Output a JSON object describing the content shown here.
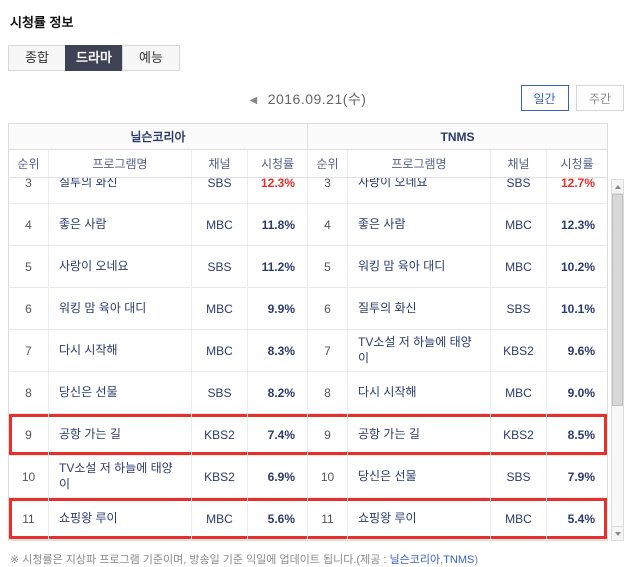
{
  "page": {
    "title": "시청률 정보"
  },
  "tabs": [
    {
      "key": "overall",
      "label": "종합"
    },
    {
      "key": "drama",
      "label": "드라마"
    },
    {
      "key": "variety",
      "label": "예능"
    }
  ],
  "active_tab": "드라마",
  "date_nav": {
    "prev_icon": "◀",
    "date": "2016.09.21(수)"
  },
  "period_toggle": {
    "daily": "일간",
    "weekly": "주간",
    "active": "일간"
  },
  "table": {
    "column_headers": {
      "rank": "순위",
      "program": "프로그램명",
      "channel": "채널",
      "rating": "시청률"
    },
    "sources": [
      {
        "name": "닐슨코리아",
        "rows": [
          {
            "rank": "3",
            "program": "질투의 화신",
            "channel": "SBS",
            "rating": "12.3%",
            "red": true
          },
          {
            "rank": "4",
            "program": "좋은 사람",
            "channel": "MBC",
            "rating": "11.8%"
          },
          {
            "rank": "5",
            "program": "사랑이 오네요",
            "channel": "SBS",
            "rating": "11.2%"
          },
          {
            "rank": "6",
            "program": "워킹 맘 육아 대디",
            "channel": "MBC",
            "rating": "9.9%"
          },
          {
            "rank": "7",
            "program": "다시 시작해",
            "channel": "MBC",
            "rating": "8.3%"
          },
          {
            "rank": "8",
            "program": "당신은 선물",
            "channel": "SBS",
            "rating": "8.2%"
          },
          {
            "rank": "9",
            "program": "공항 가는 길",
            "channel": "KBS2",
            "rating": "7.4%",
            "highlight": true
          },
          {
            "rank": "10",
            "program": "TV소설 저 하늘에 태양이",
            "channel": "KBS2",
            "rating": "6.9%"
          },
          {
            "rank": "11",
            "program": "쇼핑왕 루이",
            "channel": "MBC",
            "rating": "5.6%",
            "highlight": true
          }
        ]
      },
      {
        "name": "TNMS",
        "rows": [
          {
            "rank": "3",
            "program": "사랑이 오네요",
            "channel": "SBS",
            "rating": "12.7%",
            "red": true
          },
          {
            "rank": "4",
            "program": "좋은 사람",
            "channel": "MBC",
            "rating": "12.3%"
          },
          {
            "rank": "5",
            "program": "워킹 맘 육아 대디",
            "channel": "MBC",
            "rating": "10.2%"
          },
          {
            "rank": "6",
            "program": "질투의 화신",
            "channel": "SBS",
            "rating": "10.1%"
          },
          {
            "rank": "7",
            "program": "TV소설 저 하늘에 태양이",
            "channel": "KBS2",
            "rating": "9.6%"
          },
          {
            "rank": "8",
            "program": "다시 시작해",
            "channel": "MBC",
            "rating": "9.0%"
          },
          {
            "rank": "9",
            "program": "공항 가는 길",
            "channel": "KBS2",
            "rating": "8.5%",
            "highlight": true
          },
          {
            "rank": "10",
            "program": "당신은 선물",
            "channel": "SBS",
            "rating": "7.9%"
          },
          {
            "rank": "11",
            "program": "쇼핑왕 루이",
            "channel": "MBC",
            "rating": "5.4%",
            "highlight": true
          }
        ]
      }
    ]
  },
  "footer": {
    "notice": "※ 시청률은 지상파 프로그램 기준이며, 방송일 기준 익일에 업데이트 됩니다.(제공 : ",
    "provider1": "닐슨코리아",
    "comma": ",",
    "provider2": "TNMS",
    "close": ")"
  },
  "colors": {
    "accent_red": "#e8302a",
    "navy_text": "#2b3a6b",
    "active_tab_bg": "#3f4254",
    "daily_blue": "#3a5fc8"
  }
}
